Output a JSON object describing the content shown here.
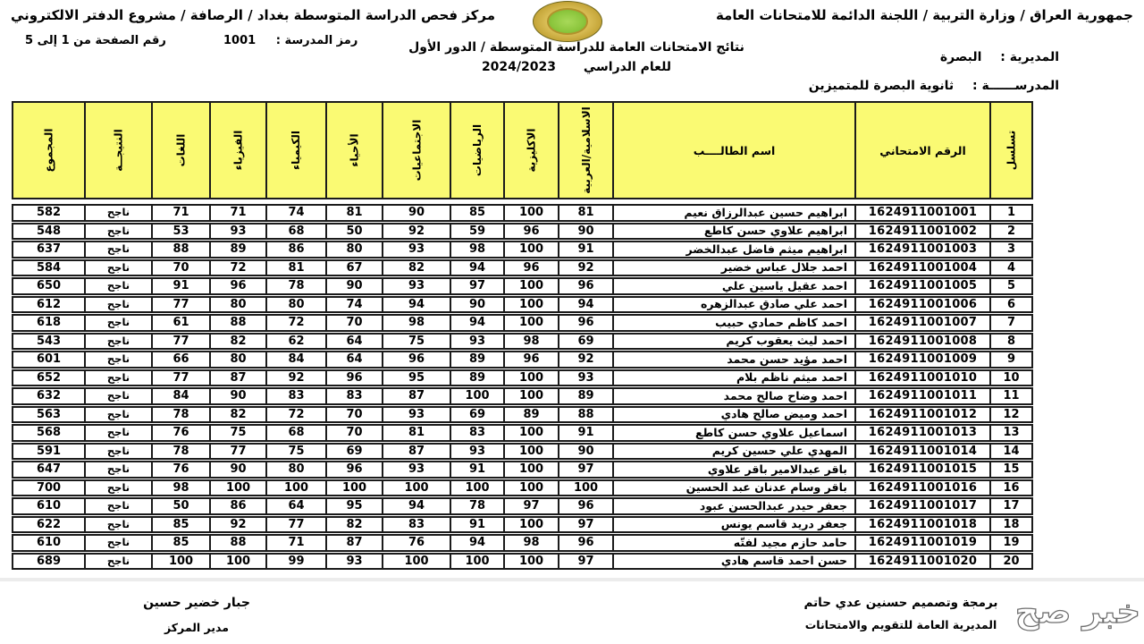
{
  "header": {
    "top_right": "جمهورية العراق / وزارة التربية / اللجنة الدائمة للامتحانات العامة",
    "top_left": "مركز فحص الدراسة المتوسطة بغداد / الرصافة / مشروع الدفتر الالكتروني",
    "page_range": "رقم الصفحة من  1 إلى  5",
    "school_code_label": "رمز المدرسة :",
    "school_code": "1001",
    "title_line1": "نتائج الامتحانات العامة للدراسة المتوسطة / الدور الأول",
    "title_line2_label": "للعام الدراسي",
    "academic_year": "2024/2023",
    "directorate_label": "المديرية :",
    "directorate_value": "البصرة",
    "school_label": "المدرســــــة :",
    "school_value": "ثانوية البصرة للمتميزين",
    "logo_name": "iraq-ministry-of-education-emblem"
  },
  "colors": {
    "header_yellow": "#fafa73",
    "border_black": "#1b1b1b"
  },
  "table": {
    "columns": [
      {
        "key": "serial",
        "label": "تسلسل"
      },
      {
        "key": "exam_no",
        "label": "الرقم الامتحاني"
      },
      {
        "key": "name",
        "label": "اسم الطالــــب"
      },
      {
        "key": "islamic",
        "label": "الاسلامية/العربية"
      },
      {
        "key": "english",
        "label": "الاكليزية"
      },
      {
        "key": "math",
        "label": "الرياضيات"
      },
      {
        "key": "social",
        "label": "الاجتماعيات"
      },
      {
        "key": "biology",
        "label": "الأحياء"
      },
      {
        "key": "chemistry",
        "label": "الكيمياء"
      },
      {
        "key": "physics",
        "label": "الفيزياء"
      },
      {
        "key": "languages",
        "label": "اللغات"
      },
      {
        "key": "result",
        "label": "النتيجــة"
      },
      {
        "key": "total",
        "label": "المجموع"
      }
    ],
    "rows": [
      {
        "serial": 1,
        "exam_no": "1624911001001",
        "name": "ابراهيم حسين عبدالرزاق نعيم",
        "islamic": 81,
        "english": 100,
        "math": 85,
        "social": 90,
        "biology": 81,
        "chemistry": 74,
        "physics": 71,
        "languages": 71,
        "result": "ناجح",
        "total": 582
      },
      {
        "serial": 2,
        "exam_no": "1624911001002",
        "name": "ابراهيم علاوي حسن كاطع",
        "islamic": 90,
        "english": 96,
        "math": 59,
        "social": 92,
        "biology": 50,
        "chemistry": 68,
        "physics": 93,
        "languages": 53,
        "result": "ناجح",
        "total": 548
      },
      {
        "serial": 3,
        "exam_no": "1624911001003",
        "name": "ابراهيم ميثم فاضل عبدالخضر",
        "islamic": 91,
        "english": 100,
        "math": 98,
        "social": 93,
        "biology": 80,
        "chemistry": 86,
        "physics": 89,
        "languages": 88,
        "result": "ناجح",
        "total": 637
      },
      {
        "serial": 4,
        "exam_no": "1624911001004",
        "name": "احمد جلال عباس خضير",
        "islamic": 92,
        "english": 96,
        "math": 94,
        "social": 82,
        "biology": 67,
        "chemistry": 81,
        "physics": 72,
        "languages": 70,
        "result": "ناجح",
        "total": 584
      },
      {
        "serial": 5,
        "exam_no": "1624911001005",
        "name": "احمد عقيل ياسين علي",
        "islamic": 96,
        "english": 100,
        "math": 97,
        "social": 93,
        "biology": 90,
        "chemistry": 78,
        "physics": 96,
        "languages": 91,
        "result": "ناجح",
        "total": 650
      },
      {
        "serial": 6,
        "exam_no": "1624911001006",
        "name": "احمد علي صادق عبدالزهره",
        "islamic": 94,
        "english": 100,
        "math": 90,
        "social": 94,
        "biology": 74,
        "chemistry": 80,
        "physics": 80,
        "languages": 77,
        "result": "ناجح",
        "total": 612
      },
      {
        "serial": 7,
        "exam_no": "1624911001007",
        "name": "احمد كاظم حمادي حبيب",
        "islamic": 96,
        "english": 100,
        "math": 94,
        "social": 98,
        "biology": 70,
        "chemistry": 72,
        "physics": 88,
        "languages": 61,
        "result": "ناجح",
        "total": 618
      },
      {
        "serial": 8,
        "exam_no": "1624911001008",
        "name": "احمد ليث يعقوب كريم",
        "islamic": 69,
        "english": 98,
        "math": 93,
        "social": 75,
        "biology": 64,
        "chemistry": 62,
        "physics": 82,
        "languages": 77,
        "result": "ناجح",
        "total": 543
      },
      {
        "serial": 9,
        "exam_no": "1624911001009",
        "name": "احمد مؤيد حسن محمد",
        "islamic": 92,
        "english": 96,
        "math": 89,
        "social": 96,
        "biology": 64,
        "chemistry": 84,
        "physics": 80,
        "languages": 66,
        "result": "ناجح",
        "total": 601
      },
      {
        "serial": 10,
        "exam_no": "1624911001010",
        "name": "احمد ميثم ناظم بلام",
        "islamic": 93,
        "english": 100,
        "math": 89,
        "social": 95,
        "biology": 96,
        "chemistry": 92,
        "physics": 87,
        "languages": 77,
        "result": "ناجح",
        "total": 652
      },
      {
        "serial": 11,
        "exam_no": "1624911001011",
        "name": "احمد وضاح صالح محمد",
        "islamic": 89,
        "english": 100,
        "math": 100,
        "social": 87,
        "biology": 83,
        "chemistry": 83,
        "physics": 90,
        "languages": 84,
        "result": "ناجح",
        "total": 632
      },
      {
        "serial": 12,
        "exam_no": "1624911001012",
        "name": "احمد وميض صالح هادي",
        "islamic": 88,
        "english": 89,
        "math": 69,
        "social": 93,
        "biology": 70,
        "chemistry": 72,
        "physics": 82,
        "languages": 78,
        "result": "ناجح",
        "total": 563
      },
      {
        "serial": 13,
        "exam_no": "1624911001013",
        "name": "اسماعيل علاوي حسن كاطع",
        "islamic": 91,
        "english": 100,
        "math": 83,
        "social": 81,
        "biology": 70,
        "chemistry": 68,
        "physics": 75,
        "languages": 76,
        "result": "ناجح",
        "total": 568
      },
      {
        "serial": 14,
        "exam_no": "1624911001014",
        "name": "المهدي علي حسين كريم",
        "islamic": 90,
        "english": 100,
        "math": 93,
        "social": 87,
        "biology": 69,
        "chemistry": 75,
        "physics": 77,
        "languages": 78,
        "result": "ناجح",
        "total": 591
      },
      {
        "serial": 15,
        "exam_no": "1624911001015",
        "name": "باقر عبدالامير باقر علاوي",
        "islamic": 97,
        "english": 100,
        "math": 91,
        "social": 93,
        "biology": 96,
        "chemistry": 80,
        "physics": 90,
        "languages": 76,
        "result": "ناجح",
        "total": 647
      },
      {
        "serial": 16,
        "exam_no": "1624911001016",
        "name": "باقر وسام عدنان عبد الحسين",
        "islamic": 100,
        "english": 100,
        "math": 100,
        "social": 100,
        "biology": 100,
        "chemistry": 100,
        "physics": 100,
        "languages": 98,
        "result": "ناجح",
        "total": 700
      },
      {
        "serial": 17,
        "exam_no": "1624911001017",
        "name": "جعفر حيدر عبدالحسن عبود",
        "islamic": 96,
        "english": 97,
        "math": 78,
        "social": 94,
        "biology": 95,
        "chemistry": 64,
        "physics": 86,
        "languages": 50,
        "result": "ناجح",
        "total": 610
      },
      {
        "serial": 18,
        "exam_no": "1624911001018",
        "name": "جعفر دريد قاسم يونس",
        "islamic": 97,
        "english": 100,
        "math": 91,
        "social": 83,
        "biology": 82,
        "chemistry": 77,
        "physics": 92,
        "languages": 85,
        "result": "ناجح",
        "total": 622
      },
      {
        "serial": 19,
        "exam_no": "1624911001019",
        "name": "حامد حازم مجيد لفتّه",
        "islamic": 96,
        "english": 98,
        "math": 94,
        "social": 76,
        "biology": 87,
        "chemistry": 71,
        "physics": 88,
        "languages": 85,
        "result": "ناجح",
        "total": 610
      },
      {
        "serial": 20,
        "exam_no": "1624911001020",
        "name": "حسن احمد قاسم هادي",
        "islamic": 97,
        "english": 100,
        "math": 100,
        "social": 100,
        "biology": 93,
        "chemistry": 99,
        "physics": 100,
        "languages": 100,
        "result": "ناجح",
        "total": 689
      }
    ]
  },
  "footer": {
    "left_name": "جبار خضير حسين",
    "left_role": "مدير المركز",
    "right_line1": "برمجة وتصميم حسنين عدي حاتم",
    "right_line2": "المديرية العامة للتقويم والامتحانات",
    "watermark": "خبر صح"
  }
}
